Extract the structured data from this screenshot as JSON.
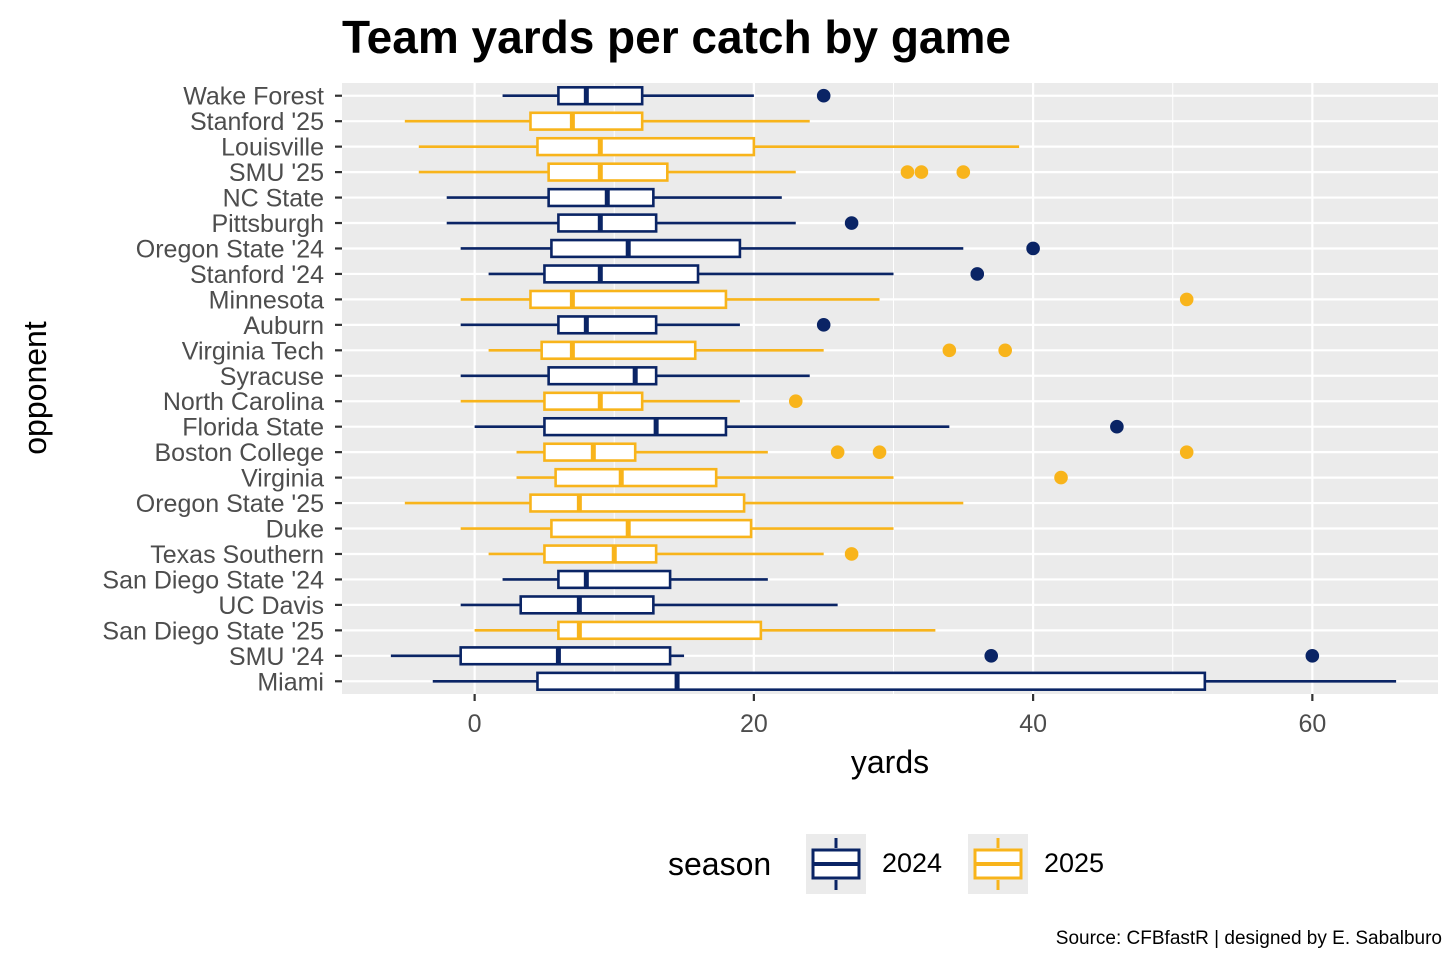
{
  "chart_data": {
    "type": "boxplot",
    "orientation": "horizontal",
    "title": "Team yards per catch by game",
    "xlabel": "yards",
    "ylabel": "opponent",
    "caption": "Source: CFBfastR | designed by E. Sabalburo",
    "xlim": [
      -9.5,
      69
    ],
    "xticks": [
      0,
      20,
      40,
      60
    ],
    "legend": {
      "title": "season",
      "position": "bottom",
      "items": [
        {
          "label": "2024",
          "color": "#0a2465"
        },
        {
          "label": "2025",
          "color": "#f8b41b"
        }
      ]
    },
    "series_colors": {
      "2024": "#0a2465",
      "2025": "#f8b41b"
    },
    "boxes": [
      {
        "opponent": "Wake Forest",
        "season": "2024",
        "whisker_low": 2,
        "q1": 6,
        "median": 8,
        "q3": 12,
        "whisker_high": 20,
        "outliers": [
          25
        ]
      },
      {
        "opponent": "Stanford '25",
        "season": "2025",
        "whisker_low": -5,
        "q1": 4,
        "median": 7,
        "q3": 12,
        "whisker_high": 24,
        "outliers": []
      },
      {
        "opponent": "Louisville",
        "season": "2025",
        "whisker_low": -4,
        "q1": 4.5,
        "median": 9,
        "q3": 20,
        "whisker_high": 39,
        "outliers": []
      },
      {
        "opponent": "SMU '25",
        "season": "2025",
        "whisker_low": -4,
        "q1": 5.3,
        "median": 9,
        "q3": 13.8,
        "whisker_high": 23,
        "outliers": [
          31,
          32,
          35
        ]
      },
      {
        "opponent": "NC State",
        "season": "2024",
        "whisker_low": -2,
        "q1": 5.3,
        "median": 9.5,
        "q3": 12.8,
        "whisker_high": 22,
        "outliers": []
      },
      {
        "opponent": "Pittsburgh",
        "season": "2024",
        "whisker_low": -2,
        "q1": 6,
        "median": 9,
        "q3": 13,
        "whisker_high": 23,
        "outliers": [
          27
        ]
      },
      {
        "opponent": "Oregon State '24",
        "season": "2024",
        "whisker_low": -1,
        "q1": 5.5,
        "median": 11,
        "q3": 19,
        "whisker_high": 35,
        "outliers": [
          40
        ]
      },
      {
        "opponent": "Stanford '24",
        "season": "2024",
        "whisker_low": 1,
        "q1": 5,
        "median": 9,
        "q3": 16,
        "whisker_high": 30,
        "outliers": [
          36
        ]
      },
      {
        "opponent": "Minnesota",
        "season": "2025",
        "whisker_low": -1,
        "q1": 4,
        "median": 7,
        "q3": 18,
        "whisker_high": 29,
        "outliers": [
          51
        ]
      },
      {
        "opponent": "Auburn",
        "season": "2024",
        "whisker_low": -1,
        "q1": 6,
        "median": 8,
        "q3": 13,
        "whisker_high": 19,
        "outliers": [
          25
        ]
      },
      {
        "opponent": "Virginia Tech",
        "season": "2025",
        "whisker_low": 1,
        "q1": 4.8,
        "median": 7,
        "q3": 15.8,
        "whisker_high": 25,
        "outliers": [
          34,
          38
        ]
      },
      {
        "opponent": "Syracuse",
        "season": "2024",
        "whisker_low": -1,
        "q1": 5.3,
        "median": 11.5,
        "q3": 13,
        "whisker_high": 24,
        "outliers": []
      },
      {
        "opponent": "North Carolina",
        "season": "2025",
        "whisker_low": -1,
        "q1": 5,
        "median": 9,
        "q3": 12,
        "whisker_high": 19,
        "outliers": [
          23
        ]
      },
      {
        "opponent": "Florida State",
        "season": "2024",
        "whisker_low": 0,
        "q1": 5,
        "median": 13,
        "q3": 18,
        "whisker_high": 34,
        "outliers": [
          46
        ]
      },
      {
        "opponent": "Boston College",
        "season": "2025",
        "whisker_low": 3,
        "q1": 5,
        "median": 8.5,
        "q3": 11.5,
        "whisker_high": 21,
        "outliers": [
          26,
          29,
          51
        ]
      },
      {
        "opponent": "Virginia",
        "season": "2025",
        "whisker_low": 3,
        "q1": 5.8,
        "median": 10.5,
        "q3": 17.3,
        "whisker_high": 30,
        "outliers": [
          42
        ]
      },
      {
        "opponent": "Oregon State '25",
        "season": "2025",
        "whisker_low": -5,
        "q1": 4,
        "median": 7.5,
        "q3": 19.3,
        "whisker_high": 35,
        "outliers": []
      },
      {
        "opponent": "Duke",
        "season": "2025",
        "whisker_low": -1,
        "q1": 5.5,
        "median": 11,
        "q3": 19.8,
        "whisker_high": 30,
        "outliers": []
      },
      {
        "opponent": "Texas Southern",
        "season": "2025",
        "whisker_low": 1,
        "q1": 5,
        "median": 10,
        "q3": 13,
        "whisker_high": 25,
        "outliers": [
          27
        ]
      },
      {
        "opponent": "San Diego State '24",
        "season": "2024",
        "whisker_low": 2,
        "q1": 6,
        "median": 8,
        "q3": 14,
        "whisker_high": 21,
        "outliers": []
      },
      {
        "opponent": "UC Davis",
        "season": "2024",
        "whisker_low": -1,
        "q1": 3.3,
        "median": 7.5,
        "q3": 12.8,
        "whisker_high": 26,
        "outliers": []
      },
      {
        "opponent": "San Diego State '25",
        "season": "2025",
        "whisker_low": 0,
        "q1": 6,
        "median": 7.5,
        "q3": 20.5,
        "whisker_high": 33,
        "outliers": []
      },
      {
        "opponent": "SMU '24",
        "season": "2024",
        "whisker_low": -6,
        "q1": -1,
        "median": 6,
        "q3": 14,
        "whisker_high": 15,
        "outliers": [
          37,
          60
        ]
      },
      {
        "opponent": "Miami",
        "season": "2024",
        "whisker_low": -3,
        "q1": 4.5,
        "median": 14.5,
        "q3": 52.3,
        "whisker_high": 66,
        "outliers": []
      }
    ]
  }
}
